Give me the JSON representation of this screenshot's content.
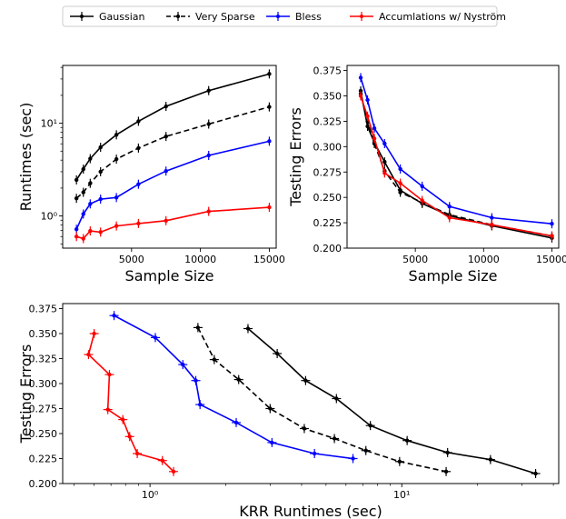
{
  "legend": {
    "placement": "top-center",
    "entries": [
      {
        "label": "Gaussian",
        "color": "#000000",
        "dashed": false
      },
      {
        "label": "Very Sparse",
        "color": "#000000",
        "dashed": true
      },
      {
        "label": "Bless",
        "color": "#0000ff",
        "dashed": false
      },
      {
        "label": "Accumlations w/ Nyström",
        "color": "#ff0000",
        "dashed": false
      }
    ]
  },
  "chart_data": [
    {
      "type": "line",
      "xlabel": "Sample Size",
      "ylabel": "Runtimes (sec)",
      "yscale": "log",
      "xlim": [
        0,
        15500
      ],
      "ylim": [
        0.45,
        42
      ],
      "xticks": [
        5000,
        10000,
        15000
      ],
      "xtick_labels": [
        "5000",
        "10000",
        "15000"
      ],
      "yticks": [
        1,
        10
      ],
      "ytick_labels": [
        "10⁰",
        "10¹"
      ],
      "series": [
        {
          "name": "Gaussian",
          "color": "#000000",
          "dashed": false,
          "x": [
            1000,
            1500,
            2000,
            2750,
            3900,
            5500,
            7500,
            10600,
            15000
          ],
          "y": [
            2.45,
            3.2,
            4.15,
            5.5,
            7.5,
            10.5,
            15.2,
            22.5,
            34
          ]
        },
        {
          "name": "Very Sparse",
          "color": "#000000",
          "dashed": true,
          "x": [
            1000,
            1500,
            2000,
            2750,
            3900,
            5500,
            7500,
            10600,
            15000
          ],
          "y": [
            1.55,
            1.8,
            2.25,
            3.0,
            4.1,
            5.4,
            7.2,
            9.8,
            15
          ]
        },
        {
          "name": "Bless",
          "color": "#0000ff",
          "dashed": false,
          "x": [
            1000,
            1500,
            2000,
            2750,
            3900,
            5500,
            7500,
            10600,
            15000
          ],
          "y": [
            0.72,
            1.05,
            1.35,
            1.52,
            1.58,
            2.2,
            3.05,
            4.5,
            6.4
          ]
        },
        {
          "name": "Accumlations w/ Nyström",
          "color": "#ff0000",
          "dashed": false,
          "x": [
            1000,
            1500,
            2000,
            2750,
            3900,
            5500,
            7500,
            10600,
            15000
          ],
          "y": [
            0.6,
            0.57,
            0.69,
            0.67,
            0.78,
            0.83,
            0.89,
            1.12,
            1.24
          ]
        }
      ]
    },
    {
      "type": "line",
      "xlabel": "Sample Size",
      "ylabel": "Testing Errors",
      "yscale": "linear",
      "xlim": [
        0,
        15500
      ],
      "ylim": [
        0.2,
        0.38
      ],
      "xticks": [
        5000,
        10000,
        15000
      ],
      "xtick_labels": [
        "5000",
        "10000",
        "15000"
      ],
      "yticks": [
        0.2,
        0.225,
        0.25,
        0.275,
        0.3,
        0.325,
        0.35,
        0.375
      ],
      "ytick_labels": [
        "0.200",
        "0.225",
        "0.250",
        "0.275",
        "0.300",
        "0.325",
        "0.350",
        "0.375"
      ],
      "series": [
        {
          "name": "Gaussian",
          "color": "#000000",
          "dashed": false,
          "x": [
            1000,
            1500,
            2000,
            2750,
            3900,
            5500,
            7500,
            10600,
            15000
          ],
          "y": [
            0.355,
            0.32,
            0.304,
            0.285,
            0.257,
            0.244,
            0.232,
            0.222,
            0.21
          ]
        },
        {
          "name": "Very Sparse",
          "color": "#000000",
          "dashed": true,
          "x": [
            1000,
            1500,
            2000,
            2750,
            3900,
            5500,
            7500,
            10600,
            15000
          ],
          "y": [
            0.352,
            0.325,
            0.303,
            0.276,
            0.255,
            0.245,
            0.233,
            0.223,
            0.212
          ]
        },
        {
          "name": "Bless",
          "color": "#0000ff",
          "dashed": false,
          "x": [
            1000,
            1500,
            2000,
            2750,
            3900,
            5500,
            7500,
            10600,
            15000
          ],
          "y": [
            0.368,
            0.346,
            0.318,
            0.303,
            0.278,
            0.261,
            0.241,
            0.23,
            0.224
          ]
        },
        {
          "name": "Accumlations w/ Nyström",
          "color": "#ff0000",
          "dashed": false,
          "x": [
            1000,
            1500,
            2000,
            2750,
            3900,
            5500,
            7500,
            10600,
            15000
          ],
          "y": [
            0.35,
            0.33,
            0.308,
            0.274,
            0.264,
            0.247,
            0.23,
            0.223,
            0.212
          ]
        }
      ]
    },
    {
      "type": "line",
      "xlabel": "KRR Runtimes (sec)",
      "ylabel": "Testing Errors",
      "xscale": "log",
      "xlim": [
        0.45,
        42
      ],
      "ylim": [
        0.2,
        0.38
      ],
      "xticks": [
        1,
        10
      ],
      "xtick_labels": [
        "10⁰",
        "10¹"
      ],
      "yticks": [
        0.2,
        0.225,
        0.25,
        0.275,
        0.3,
        0.325,
        0.35,
        0.375
      ],
      "ytick_labels": [
        "0.200",
        "0.225",
        "0.250",
        "0.275",
        "0.300",
        "0.325",
        "0.350",
        "0.375"
      ],
      "series": [
        {
          "name": "Gaussian",
          "color": "#000000",
          "dashed": false,
          "x": [
            2.45,
            3.2,
            4.15,
            5.5,
            7.5,
            10.5,
            15.2,
            22.5,
            34
          ],
          "y": [
            0.355,
            0.33,
            0.303,
            0.285,
            0.258,
            0.243,
            0.231,
            0.224,
            0.21
          ]
        },
        {
          "name": "Very Sparse",
          "color": "#000000",
          "dashed": true,
          "x": [
            1.55,
            1.8,
            2.25,
            3.0,
            4.1,
            5.4,
            7.2,
            9.8,
            15
          ],
          "y": [
            0.356,
            0.324,
            0.304,
            0.275,
            0.255,
            0.245,
            0.233,
            0.222,
            0.212
          ]
        },
        {
          "name": "Bless",
          "color": "#0000ff",
          "dashed": false,
          "x": [
            0.72,
            1.05,
            1.35,
            1.52,
            1.58,
            2.2,
            3.05,
            4.5,
            6.4
          ],
          "y": [
            0.368,
            0.346,
            0.319,
            0.303,
            0.279,
            0.261,
            0.241,
            0.23,
            0.225
          ]
        },
        {
          "name": "Accumlations w/ Nyström",
          "color": "#ff0000",
          "dashed": false,
          "x": [
            0.6,
            0.57,
            0.69,
            0.68,
            0.78,
            0.83,
            0.89,
            1.12,
            1.24
          ],
          "y": [
            0.35,
            0.329,
            0.309,
            0.274,
            0.264,
            0.247,
            0.23,
            0.223,
            0.212
          ]
        }
      ]
    }
  ]
}
